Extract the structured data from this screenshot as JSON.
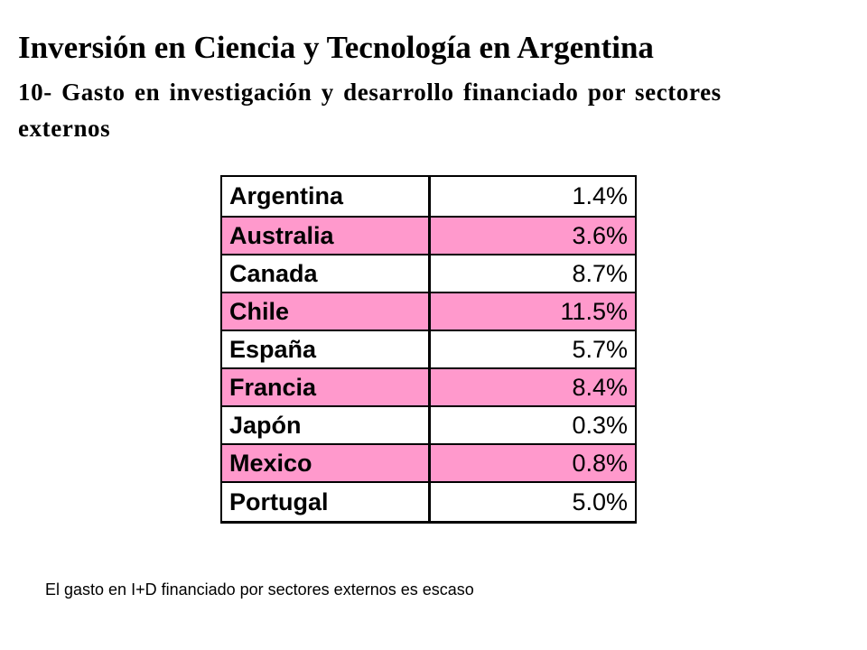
{
  "title": "Inversión en Ciencia y Tecnología en Argentina",
  "subtitle": "10- Gasto en investigación y desarrollo financiado por sectores externos",
  "table": {
    "rows": [
      {
        "country": "Argentina",
        "value": "1.4%"
      },
      {
        "country": "Australia",
        "value": "3.6%"
      },
      {
        "country": "Canada",
        "value": "8.7%"
      },
      {
        "country": "Chile",
        "value": "11.5%"
      },
      {
        "country": "España",
        "value": "5.7%"
      },
      {
        "country": "Francia",
        "value": "8.4%"
      },
      {
        "country": "Japón",
        "value": "0.3%"
      },
      {
        "country": "Mexico",
        "value": "0.8%"
      },
      {
        "country": "Portugal",
        "value": "5.0%"
      }
    ],
    "row_colors": [
      "#ffffff",
      "#ff99cc"
    ]
  },
  "footnote": "El gasto en I+D financiado por sectores externos es escaso"
}
